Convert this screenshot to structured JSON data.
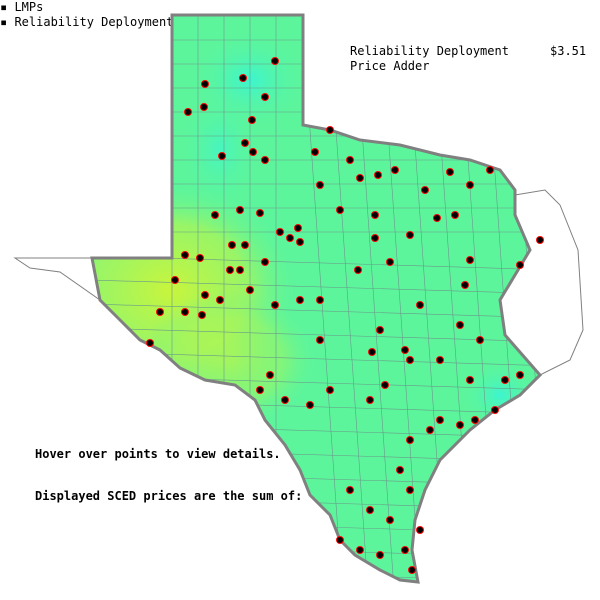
{
  "legend": {
    "label": "Reliability Deployment\nPrice Adder",
    "value": "$3.51"
  },
  "instructions": "Hover over points to view details.",
  "summary": {
    "heading": "Displayed SCED prices are the sum of:",
    "items": [
      "LMPs",
      "Reliability Deployment Price Adder"
    ]
  },
  "colors": {
    "base_green": "#5cf59c",
    "west_yellow": "#c8f53c",
    "cyan": "#3cf5d0",
    "outline": "#808080",
    "point": "#000000",
    "point_ring": "#ff0000"
  }
}
